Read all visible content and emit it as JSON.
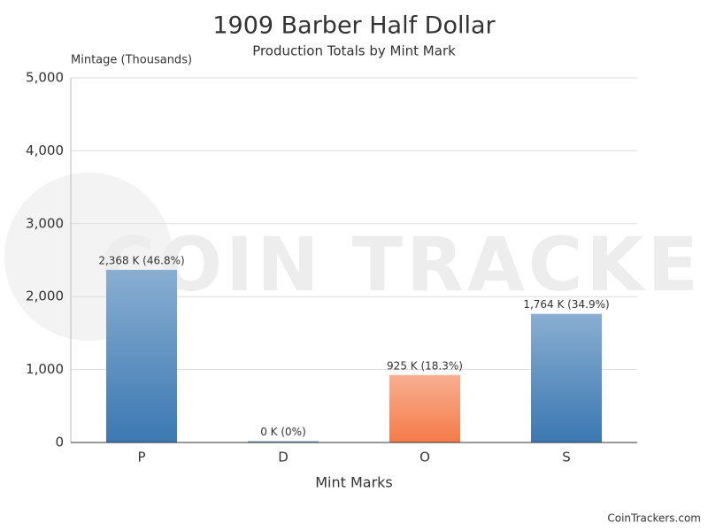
{
  "chart_data": {
    "type": "bar",
    "title": "1909 Barber Half Dollar",
    "subtitle": "Production Totals by Mint Mark",
    "y_label": "Mintage (Thousands)",
    "x_label": "Mint Marks",
    "watermark": "COIN TRACKERS",
    "credit": "CoinTrackers.com",
    "categories": [
      "P",
      "D",
      "O",
      "S"
    ],
    "values": [
      2368,
      0,
      925,
      1764
    ],
    "value_labels": [
      "2,368 K (46.8%)",
      "0 K (0%)",
      "925 K (18.3%)",
      "1,764 K (34.9%)"
    ],
    "colors": [
      "#3b78b2",
      "#3b78b2",
      "#f47a48",
      "#3b78b2"
    ],
    "ylim": [
      0,
      5000
    ],
    "yticks": [
      0,
      {
        "value": 1000,
        "label": "1,000"
      },
      {
        "value": 2000,
        "label": "2,000"
      },
      {
        "value": 3000,
        "label": "3,000"
      },
      {
        "value": 4000,
        "label": "4,000"
      },
      {
        "value": 5000,
        "label": "5,000"
      }
    ],
    "grid": true
  }
}
